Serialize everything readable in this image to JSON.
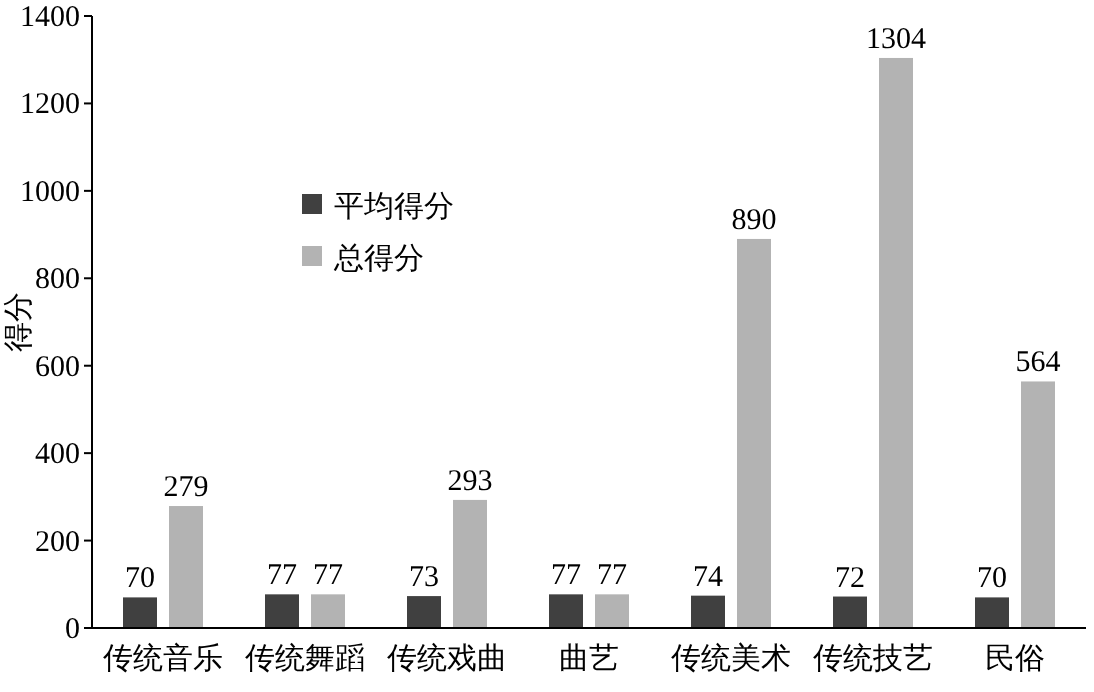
{
  "chart_data": {
    "type": "bar",
    "ylabel": "得分",
    "categories": [
      "传统音乐",
      "传统舞蹈",
      "传统戏曲",
      "曲艺",
      "传统美术",
      "传统技艺",
      "民俗"
    ],
    "series": [
      {
        "name": "平均得分",
        "color": "#404040",
        "values": [
          70,
          77,
          73,
          77,
          74,
          72,
          70
        ]
      },
      {
        "name": "总得分",
        "color": "#b3b3b3",
        "values": [
          279,
          77,
          293,
          77,
          890,
          1304,
          564
        ]
      }
    ],
    "ylim": [
      0,
      1400
    ],
    "yticks": [
      0,
      200,
      400,
      600,
      800,
      1000,
      1200,
      1400
    ],
    "data_labels": true,
    "legend": "top left"
  }
}
